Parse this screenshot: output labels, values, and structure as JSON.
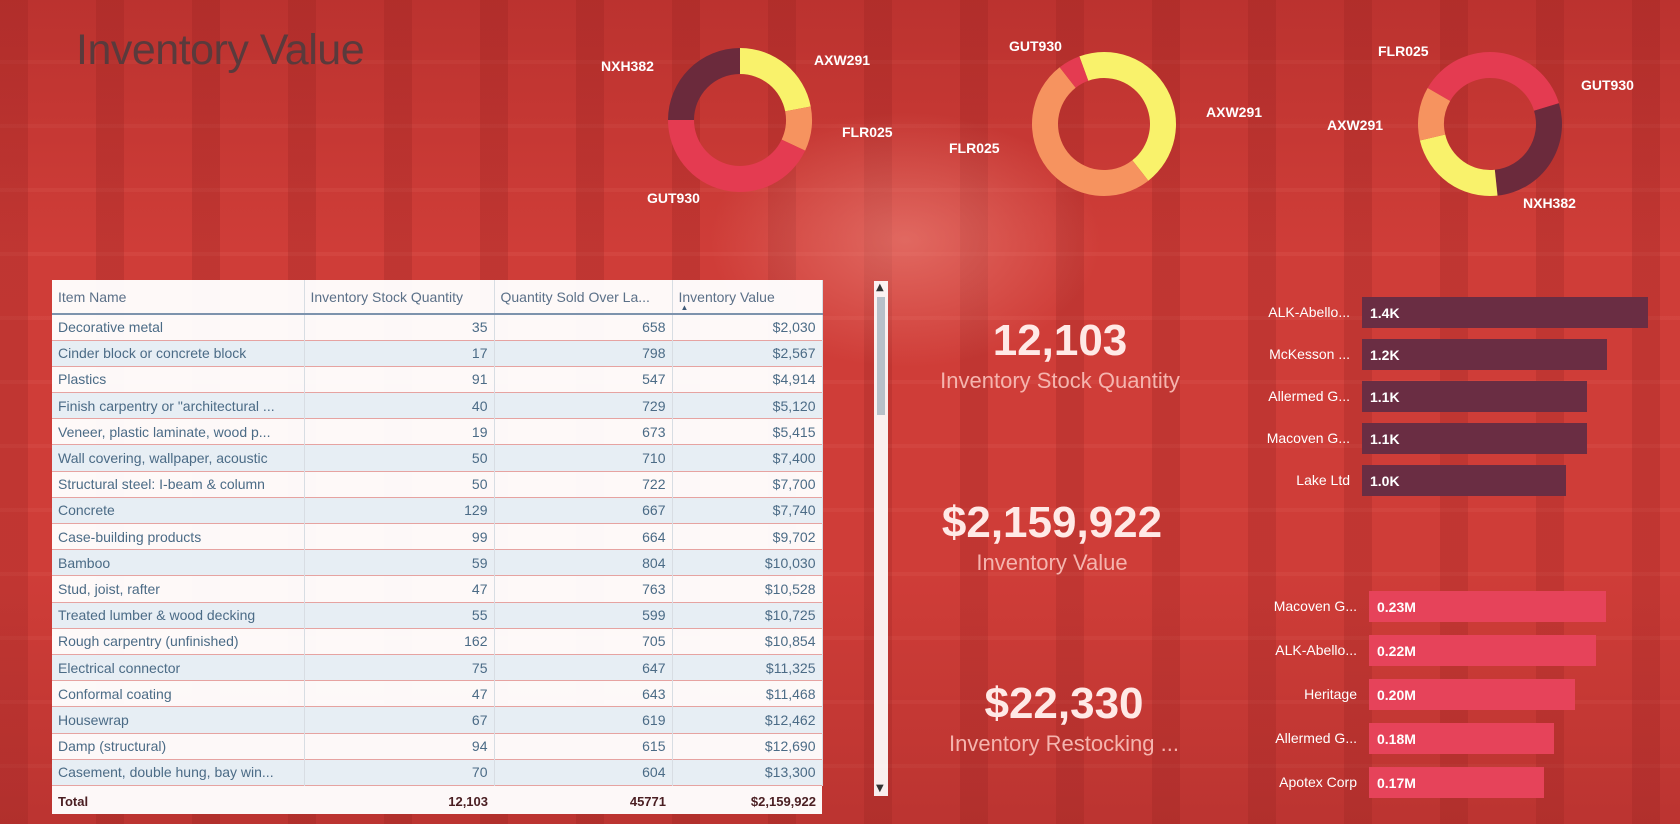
{
  "page": {
    "title": "Inventory Value"
  },
  "colors": {
    "axw291": "#f9f26b",
    "flr025": "#f6935f",
    "gut930": "#e43b51",
    "nxh382": "#6b2a3c",
    "bar_dark": "#6a2d43",
    "bar_pink": "#e6435a"
  },
  "chart_data": [
    {
      "type": "pie",
      "variant": "donut",
      "labels": [
        "AXW291",
        "FLR025",
        "GUT930",
        "NXH382"
      ],
      "values": [
        22,
        10,
        43,
        25
      ]
    },
    {
      "type": "pie",
      "variant": "donut",
      "labels": [
        "AXW291",
        "FLR025",
        "GUT930"
      ],
      "values": [
        45,
        50,
        5
      ]
    },
    {
      "type": "pie",
      "variant": "donut",
      "labels": [
        "GUT930",
        "NXH382",
        "AXW291",
        "FLR025"
      ],
      "values": [
        37,
        28,
        23,
        12
      ]
    },
    {
      "type": "bar",
      "orientation": "horizontal",
      "categories": [
        "ALK-Abello...",
        "McKesson ...",
        "Allermed G...",
        "Macoven G...",
        "Lake Ltd"
      ],
      "values": [
        1400,
        1200,
        1100,
        1100,
        1000
      ],
      "data_labels": [
        "1.4K",
        "1.2K",
        "1.1K",
        "1.1K",
        "1.0K"
      ]
    },
    {
      "type": "bar",
      "orientation": "horizontal",
      "categories": [
        "Macoven G...",
        "ALK-Abello...",
        "Heritage",
        "Allermed G...",
        "Apotex Corp"
      ],
      "values": [
        0.23,
        0.22,
        0.2,
        0.18,
        0.17
      ],
      "data_labels": [
        "0.23M",
        "0.22M",
        "0.20M",
        "0.18M",
        "0.17M"
      ]
    }
  ],
  "table": {
    "columns": [
      "Item Name",
      "Inventory Stock Quantity",
      "Quantity Sold Over La...",
      "Inventory Value"
    ],
    "rows": [
      [
        "Decorative metal",
        "35",
        "658",
        "$2,030"
      ],
      [
        "Cinder block or concrete block",
        "17",
        "798",
        "$2,567"
      ],
      [
        "Plastics",
        "91",
        "547",
        "$4,914"
      ],
      [
        "Finish carpentry or \"architectural ...",
        "40",
        "729",
        "$5,120"
      ],
      [
        "Veneer, plastic laminate, wood p...",
        "19",
        "673",
        "$5,415"
      ],
      [
        "Wall covering, wallpaper, acoustic",
        "50",
        "710",
        "$7,400"
      ],
      [
        "Structural steel: I-beam & column",
        "50",
        "722",
        "$7,700"
      ],
      [
        "Concrete",
        "129",
        "667",
        "$7,740"
      ],
      [
        "Case-building products",
        "99",
        "664",
        "$9,702"
      ],
      [
        "Bamboo",
        "59",
        "804",
        "$10,030"
      ],
      [
        "Stud, joist, rafter",
        "47",
        "763",
        "$10,528"
      ],
      [
        "Treated lumber & wood decking",
        "55",
        "599",
        "$10,725"
      ],
      [
        "Rough carpentry (unfinished)",
        "162",
        "705",
        "$10,854"
      ],
      [
        "Electrical connector",
        "75",
        "647",
        "$11,325"
      ],
      [
        "Conformal coating",
        "47",
        "643",
        "$11,468"
      ],
      [
        "Housewrap",
        "67",
        "619",
        "$12,462"
      ],
      [
        "Damp (structural)",
        "94",
        "615",
        "$12,690"
      ],
      [
        "Casement, double hung, bay win...",
        "70",
        "604",
        "$13,300"
      ]
    ],
    "total": [
      "Total",
      "12,103",
      "45771",
      "$2,159,922"
    ]
  },
  "kpis": [
    {
      "value": "12,103",
      "label": "Inventory Stock Quantity"
    },
    {
      "value": "$2,159,922",
      "label": "Inventory Value"
    },
    {
      "value": "$22,330",
      "label": "Inventory Restocking ..."
    }
  ]
}
